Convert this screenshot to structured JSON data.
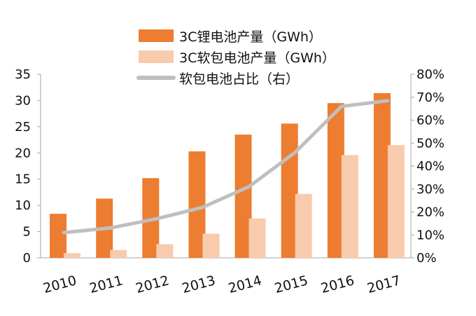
{
  "chart_data": {
    "type": "bar",
    "categories": [
      "2010",
      "2011",
      "2012",
      "2013",
      "2014",
      "2015",
      "2016",
      "2017"
    ],
    "series": [
      {
        "name": "3C锂电池产量（GWh）",
        "kind": "bar",
        "axis": "left",
        "color": "#ED7D31",
        "values": [
          8.4,
          11.3,
          15.2,
          20.3,
          23.5,
          25.6,
          29.5,
          31.4
        ]
      },
      {
        "name": "3C软包电池产量（GWh）",
        "kind": "bar",
        "axis": "left",
        "color": "#F8CBAD",
        "values": [
          0.9,
          1.5,
          2.6,
          4.6,
          7.5,
          12.2,
          19.6,
          21.5
        ]
      },
      {
        "name": "软包电池占比（右）",
        "kind": "line",
        "axis": "right",
        "color": "#BFBFBF",
        "values": [
          0.11,
          0.13,
          0.17,
          0.22,
          0.31,
          0.46,
          0.66,
          0.685
        ]
      }
    ],
    "y_left": {
      "lim": [
        0,
        35
      ],
      "ticks": [
        "0",
        "5",
        "10",
        "15",
        "20",
        "25",
        "30",
        "35"
      ]
    },
    "y_right": {
      "lim": [
        0,
        0.8
      ],
      "ticks": [
        "0%",
        "10%",
        "20%",
        "30%",
        "40%",
        "50%",
        "60%",
        "70%",
        "80%"
      ]
    },
    "title": "",
    "xlabel": "",
    "ylabel": "",
    "grid": false,
    "legend_position": "top-center"
  }
}
